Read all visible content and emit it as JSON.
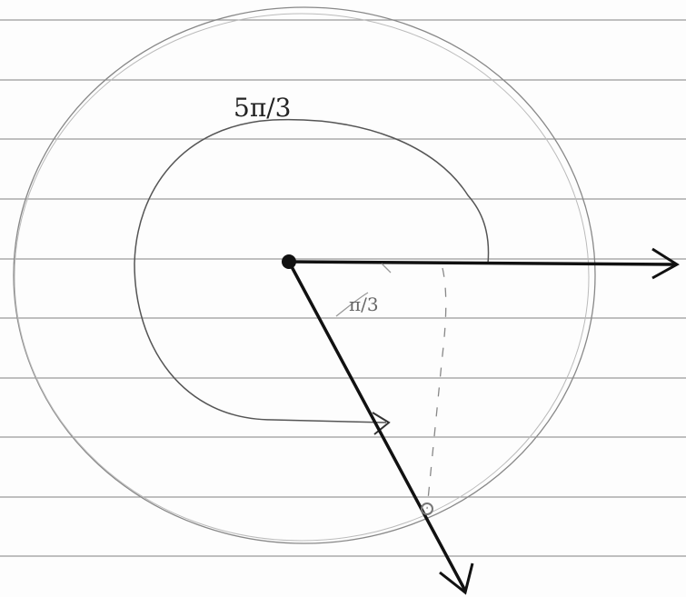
{
  "angles": [
    {
      "label": "5π/3"
    },
    {
      "label": "π/3"
    }
  ]
}
